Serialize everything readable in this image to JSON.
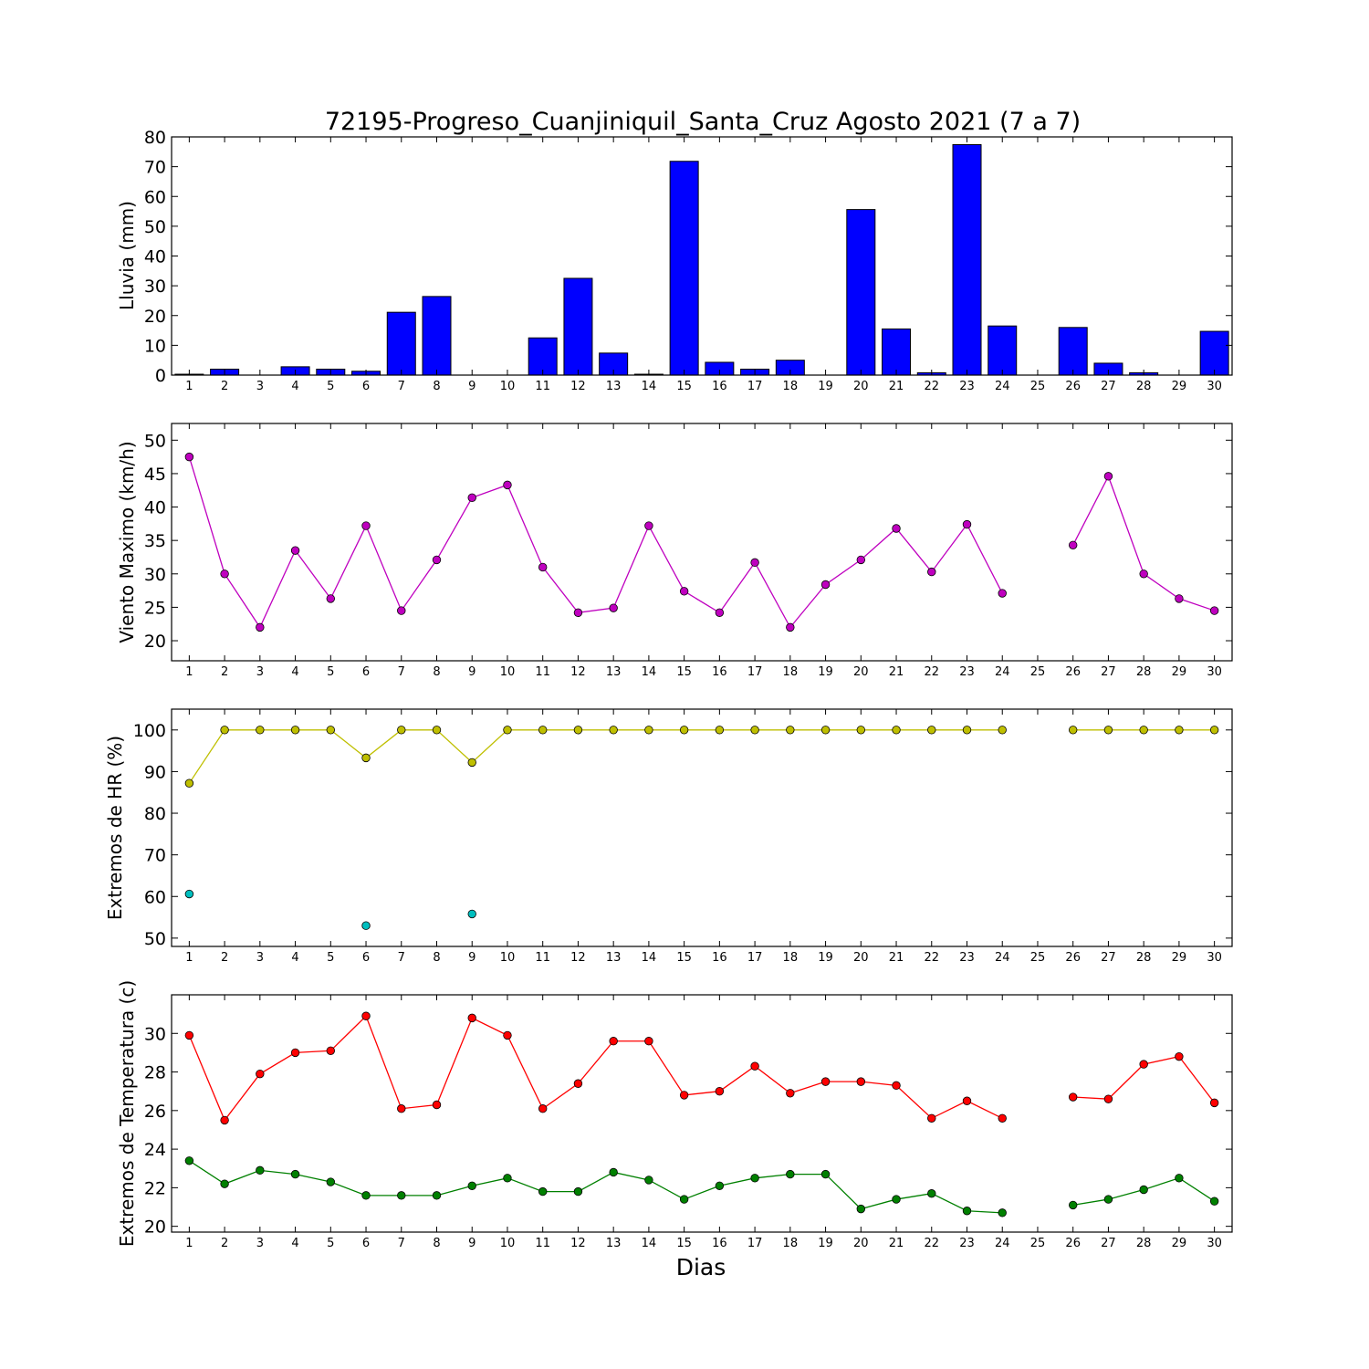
{
  "title": "72195-Progreso_Cuanjiniquil_Santa_Cruz Agosto 2021  (7 a 7)",
  "xlabel": "Dias",
  "colors": {
    "rain": "#0000ff",
    "wind": "#bf00bf",
    "hr_max": "#bfbf00",
    "hr_min": "#00bfbf",
    "temp_max": "#ff0000",
    "temp_min": "#008000"
  },
  "chart_data": [
    {
      "type": "bar",
      "ylabel": "Lluvia (mm)",
      "ylim": [
        0,
        80
      ],
      "yticks": [
        0,
        10,
        20,
        30,
        40,
        50,
        60,
        70,
        80
      ],
      "xlim": [
        0.5,
        30.5
      ],
      "x": [
        1,
        2,
        3,
        4,
        5,
        6,
        7,
        8,
        9,
        10,
        11,
        12,
        13,
        14,
        15,
        16,
        17,
        18,
        19,
        20,
        21,
        22,
        23,
        24,
        25,
        26,
        27,
        28,
        29,
        30
      ],
      "xticklabels": [
        "1",
        "2",
        "3",
        "4",
        "5",
        "6",
        "7",
        "8",
        "9",
        "10",
        "11",
        "12",
        "13",
        "14",
        "15",
        "16",
        "17",
        "18",
        "19",
        "20",
        "21",
        "22",
        "23",
        "24",
        "25",
        "26",
        "27",
        "28",
        "29",
        "30"
      ],
      "grid": false,
      "series": [
        {
          "color": "#0000ff",
          "values": [
            0.3,
            2,
            0,
            2.8,
            2,
            1.3,
            21.1,
            26.4,
            0,
            0,
            12.5,
            32.5,
            7.4,
            0.3,
            71.8,
            4.3,
            2,
            5,
            0,
            55.6,
            15.5,
            0.8,
            77.4,
            16.5,
            null,
            16,
            4,
            0.8,
            0,
            14.7
          ]
        }
      ]
    },
    {
      "type": "line",
      "ylabel": "Viento Maximo (km/h)",
      "ylim": [
        17,
        52.5
      ],
      "yticks": [
        20,
        25,
        30,
        35,
        40,
        45,
        50
      ],
      "xlim": [
        0.5,
        30.5
      ],
      "x": [
        1,
        2,
        3,
        4,
        5,
        6,
        7,
        8,
        9,
        10,
        11,
        12,
        13,
        14,
        15,
        16,
        17,
        18,
        19,
        20,
        21,
        22,
        23,
        24,
        25,
        26,
        27,
        28,
        29,
        30
      ],
      "xticklabels": [
        "1",
        "2",
        "3",
        "4",
        "5",
        "6",
        "7",
        "8",
        "9",
        "10",
        "11",
        "12",
        "13",
        "14",
        "15",
        "16",
        "17",
        "18",
        "19",
        "20",
        "21",
        "22",
        "23",
        "24",
        "25",
        "26",
        "27",
        "28",
        "29",
        "30"
      ],
      "grid": false,
      "series": [
        {
          "color": "#bf00bf",
          "values": [
            47.5,
            30,
            22,
            33.5,
            26.3,
            37.2,
            24.5,
            32.1,
            41.4,
            43.3,
            31,
            24.2,
            24.9,
            37.2,
            27.4,
            24.2,
            31.7,
            22,
            28.4,
            32.1,
            36.8,
            30.3,
            37.4,
            27.1,
            null,
            34.3,
            44.6,
            30,
            26.3,
            24.5
          ]
        }
      ]
    },
    {
      "type": "line",
      "ylabel": "Extremos de HR (%)",
      "ylim": [
        48,
        105
      ],
      "yticks": [
        50,
        60,
        70,
        80,
        90,
        100
      ],
      "xlim": [
        0.5,
        30.5
      ],
      "x": [
        1,
        2,
        3,
        4,
        5,
        6,
        7,
        8,
        9,
        10,
        11,
        12,
        13,
        14,
        15,
        16,
        17,
        18,
        19,
        20,
        21,
        22,
        23,
        24,
        25,
        26,
        27,
        28,
        29,
        30
      ],
      "xticklabels": [
        "1",
        "2",
        "3",
        "4",
        "5",
        "6",
        "7",
        "8",
        "9",
        "10",
        "11",
        "12",
        "13",
        "14",
        "15",
        "16",
        "17",
        "18",
        "19",
        "20",
        "21",
        "22",
        "23",
        "24",
        "25",
        "26",
        "27",
        "28",
        "29",
        "30"
      ],
      "grid": false,
      "series": [
        {
          "color": "#bfbf00",
          "values": [
            87.2,
            100,
            100,
            100,
            100,
            93.3,
            100,
            100,
            92.2,
            100,
            100,
            100,
            100,
            100,
            100,
            100,
            100,
            100,
            100,
            100,
            100,
            100,
            100,
            100,
            null,
            100,
            100,
            100,
            100,
            100
          ]
        },
        {
          "color": "#00bfbf",
          "values": [
            60.6,
            null,
            null,
            null,
            null,
            53,
            null,
            null,
            55.8,
            null,
            null,
            null,
            null,
            null,
            null,
            null,
            null,
            null,
            null,
            null,
            null,
            null,
            null,
            null,
            null,
            null,
            null,
            null,
            null,
            null
          ]
        }
      ]
    },
    {
      "type": "line",
      "ylabel": "Extremos de Temperatura (c)",
      "ylim": [
        19.7,
        32
      ],
      "yticks": [
        20,
        22,
        24,
        26,
        28,
        30
      ],
      "xlim": [
        0.5,
        30.5
      ],
      "x": [
        1,
        2,
        3,
        4,
        5,
        6,
        7,
        8,
        9,
        10,
        11,
        12,
        13,
        14,
        15,
        16,
        17,
        18,
        19,
        20,
        21,
        22,
        23,
        24,
        25,
        26,
        27,
        28,
        29,
        30
      ],
      "xticklabels": [
        "1",
        "2",
        "3",
        "4",
        "5",
        "6",
        "7",
        "8",
        "9",
        "10",
        "11",
        "12",
        "13",
        "14",
        "15",
        "16",
        "17",
        "18",
        "19",
        "20",
        "21",
        "22",
        "23",
        "24",
        "25",
        "26",
        "27",
        "28",
        "29",
        "30"
      ],
      "grid": false,
      "series": [
        {
          "color": "#ff0000",
          "values": [
            29.9,
            25.5,
            27.9,
            29,
            29.1,
            30.9,
            26.1,
            26.3,
            30.8,
            29.9,
            26.1,
            27.4,
            29.6,
            29.6,
            26.8,
            27,
            28.3,
            26.9,
            27.5,
            27.5,
            27.3,
            25.6,
            26.5,
            25.6,
            null,
            26.7,
            26.6,
            28.4,
            28.8,
            26.4
          ]
        },
        {
          "color": "#008000",
          "values": [
            23.4,
            22.2,
            22.9,
            22.7,
            22.3,
            21.6,
            21.6,
            21.6,
            22.1,
            22.5,
            21.8,
            21.8,
            22.8,
            22.4,
            21.4,
            22.1,
            22.5,
            22.7,
            22.7,
            20.9,
            21.4,
            21.7,
            20.8,
            20.7,
            null,
            21.1,
            21.4,
            21.9,
            22.5,
            21.3
          ]
        }
      ]
    }
  ]
}
